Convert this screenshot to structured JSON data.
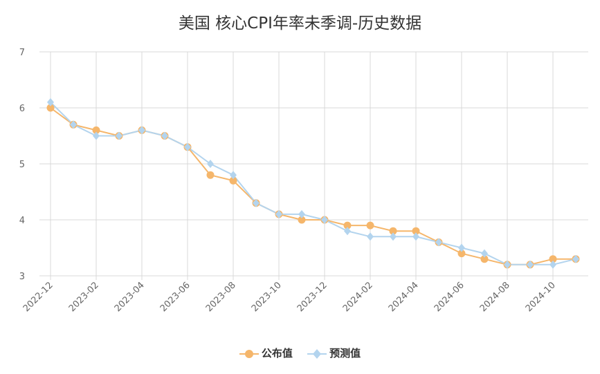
{
  "chart_data": {
    "type": "line",
    "title": "美国 核心CPI年率未季调-历史数据",
    "xlabel": "",
    "ylabel": "",
    "ylim": [
      3,
      7
    ],
    "yticks": [
      3,
      4,
      5,
      6,
      7
    ],
    "grid": true,
    "legend_position": "bottom-center",
    "x": [
      "2022-12",
      "2023-01",
      "2023-02",
      "2023-03",
      "2023-04",
      "2023-05",
      "2023-06",
      "2023-07",
      "2023-08",
      "2023-09",
      "2023-10",
      "2023-11",
      "2023-12",
      "2024-01",
      "2024-02",
      "2024-03",
      "2024-04",
      "2024-05",
      "2024-06",
      "2024-07",
      "2024-08",
      "2024-09",
      "2024-10",
      "2024-11"
    ],
    "xtick_labels": [
      "2022-12",
      "2023-02",
      "2023-04",
      "2023-06",
      "2023-08",
      "2023-10",
      "2023-12",
      "2024-02",
      "2024-04",
      "2024-06",
      "2024-08",
      "2024-10"
    ],
    "series": [
      {
        "name": "公布值",
        "color": "#f5b66b",
        "marker": "circle",
        "values": [
          6.0,
          5.7,
          5.6,
          5.5,
          5.6,
          5.5,
          5.3,
          4.8,
          4.7,
          4.3,
          4.1,
          4.0,
          4.0,
          3.9,
          3.9,
          3.8,
          3.8,
          3.6,
          3.4,
          3.3,
          3.2,
          3.2,
          3.3,
          3.3
        ]
      },
      {
        "name": "预测值",
        "color": "#b3d4ee",
        "marker": "diamond",
        "values": [
          6.1,
          5.7,
          5.5,
          5.5,
          5.6,
          5.5,
          5.3,
          5.0,
          4.8,
          4.3,
          4.1,
          4.1,
          4.0,
          3.8,
          3.7,
          3.7,
          3.7,
          3.6,
          3.5,
          3.4,
          3.2,
          3.2,
          3.2,
          3.3
        ]
      }
    ]
  }
}
